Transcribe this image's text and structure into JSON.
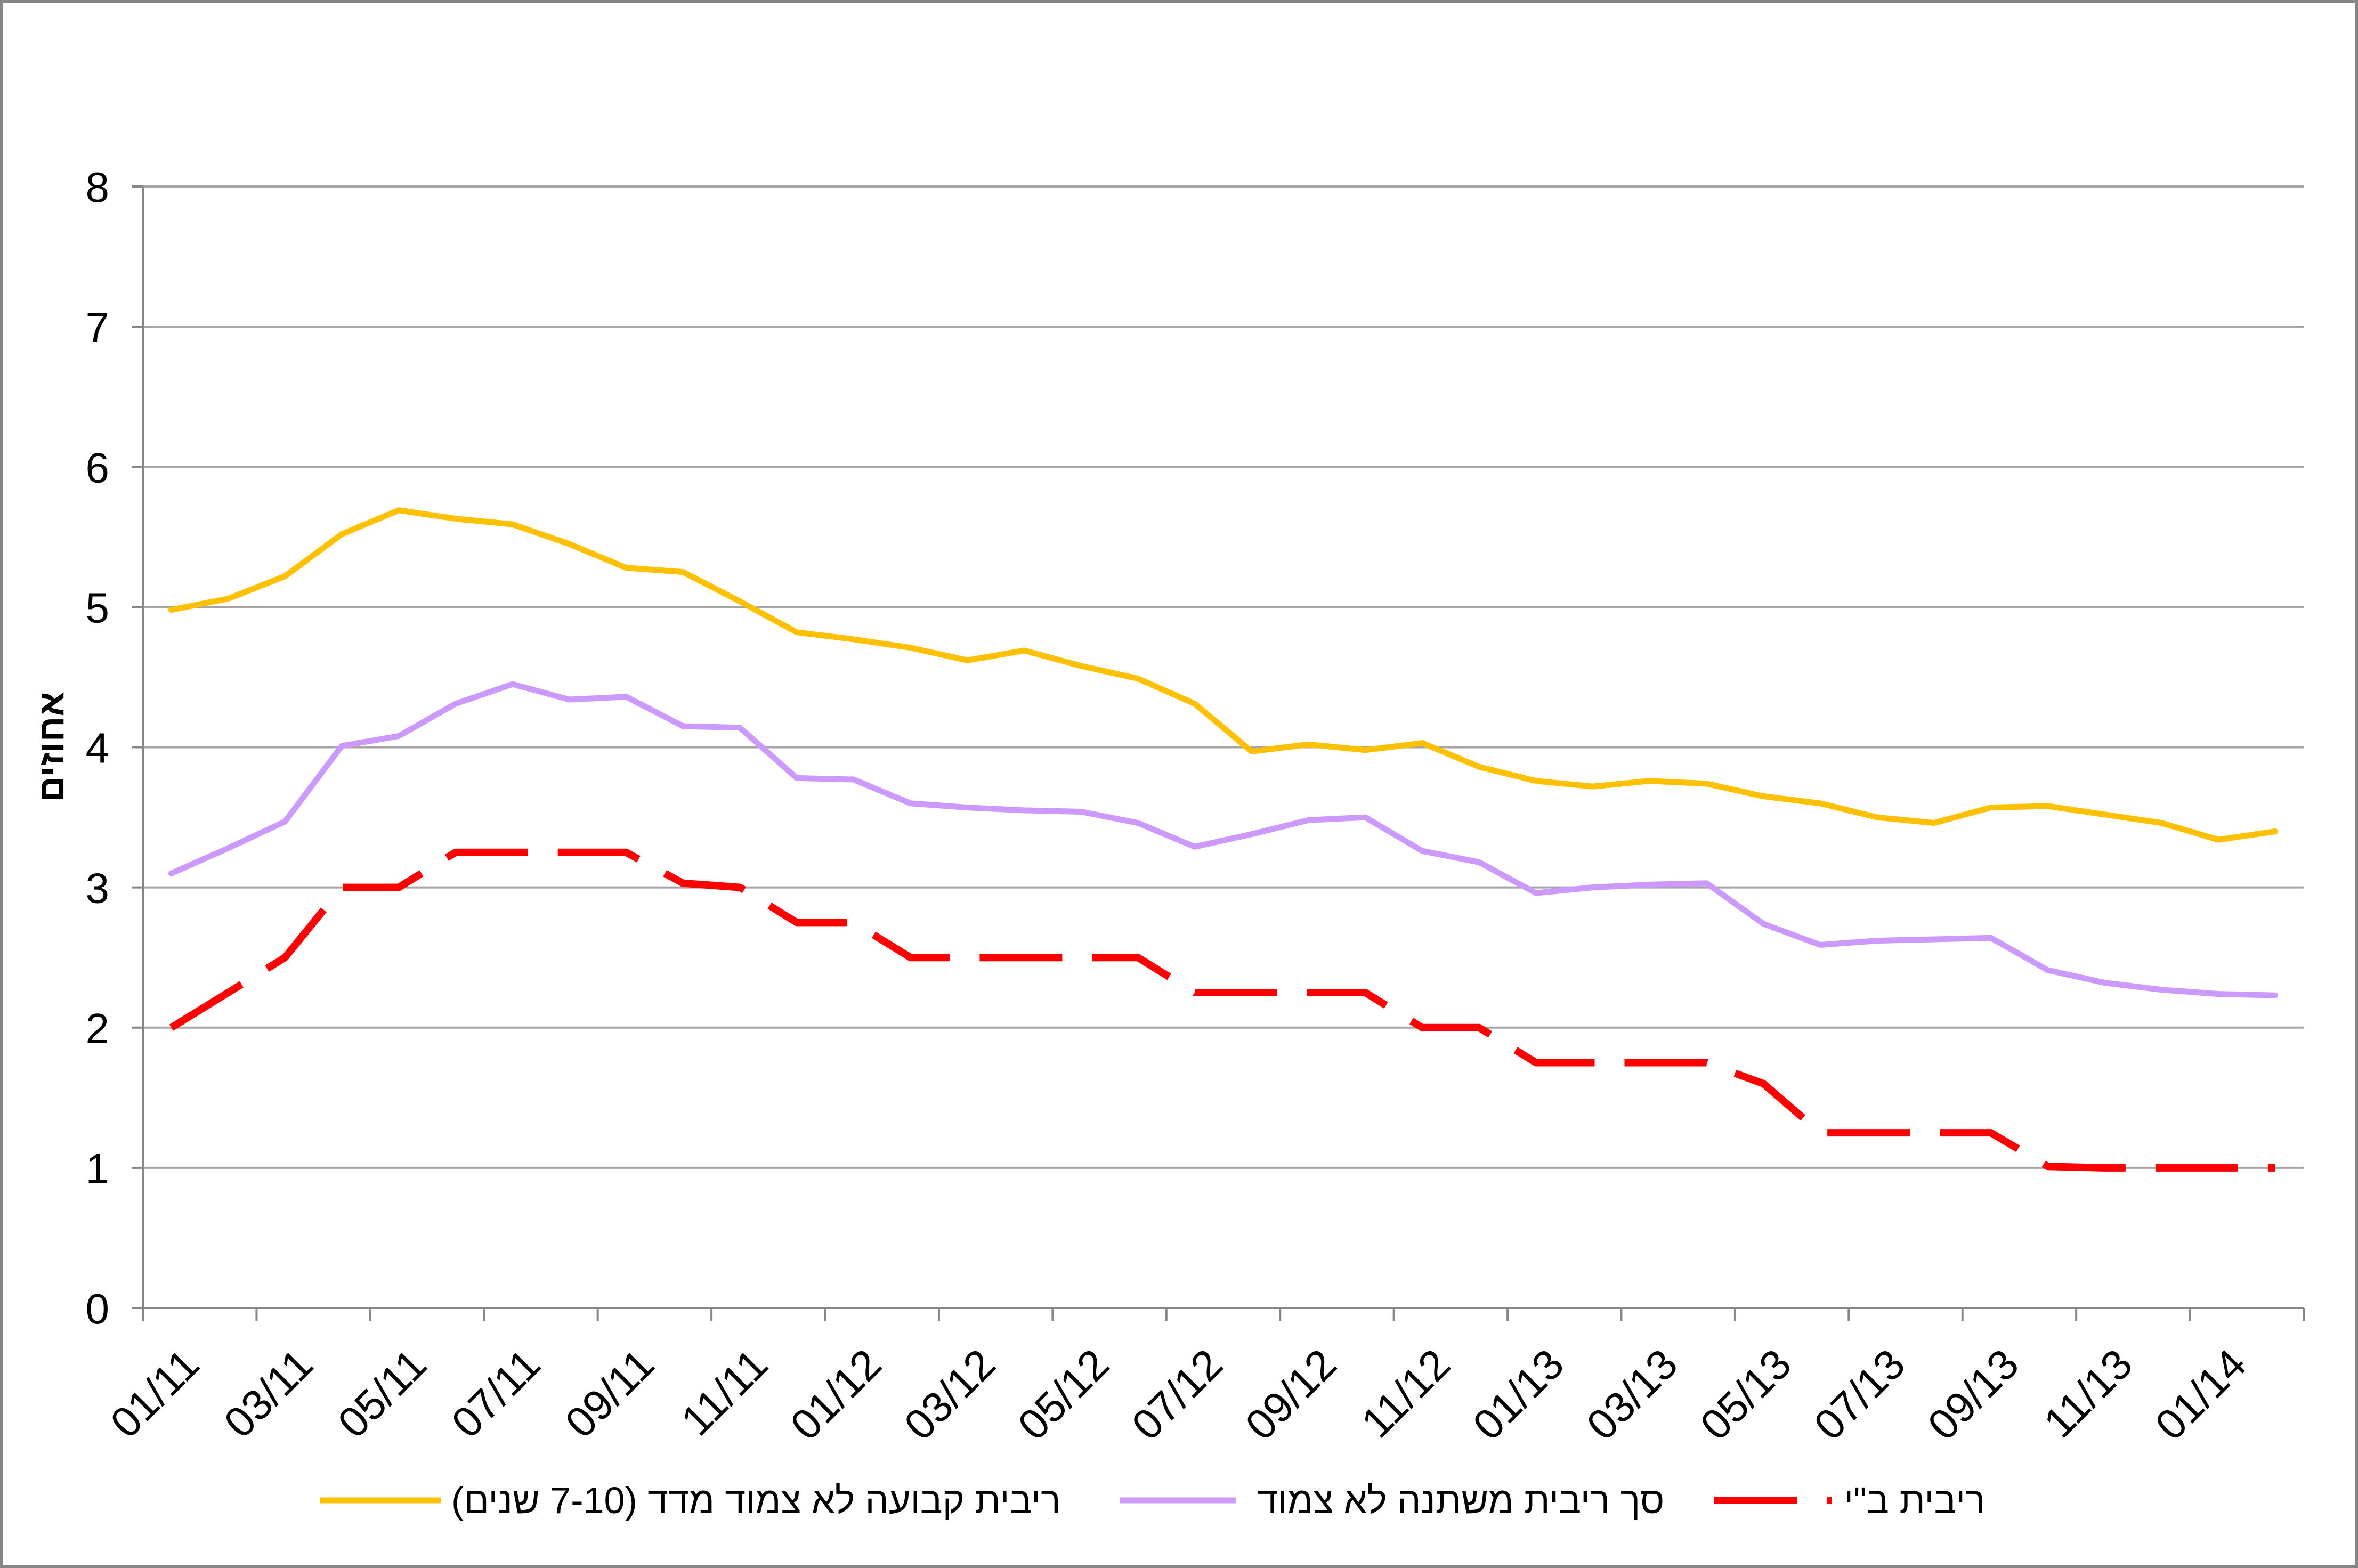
{
  "chart_data": {
    "type": "line",
    "xlabel": "",
    "ylabel": "אחוזים",
    "ylim": [
      0,
      8
    ],
    "y_ticks": [
      0,
      1,
      2,
      3,
      4,
      5,
      6,
      7,
      8
    ],
    "grid": {
      "horizontal": true,
      "vertical": false
    },
    "legend": "bottom",
    "x": [
      "01/11",
      "02/11",
      "03/11",
      "04/11",
      "05/11",
      "06/11",
      "07/11",
      "08/11",
      "09/11",
      "10/11",
      "11/11",
      "12/11",
      "01/12",
      "02/12",
      "03/12",
      "04/12",
      "05/12",
      "06/12",
      "07/12",
      "08/12",
      "09/12",
      "10/12",
      "11/12",
      "12/12",
      "01/13",
      "02/13",
      "03/13",
      "04/13",
      "05/13",
      "06/13",
      "07/13",
      "08/13",
      "09/13",
      "10/13",
      "11/13",
      "12/13",
      "01/14",
      "02/14"
    ],
    "tick_labels": [
      "01/11",
      "03/11",
      "05/11",
      "07/11",
      "09/11",
      "11/11",
      "01/12",
      "03/12",
      "05/12",
      "07/12",
      "09/12",
      "11/12",
      "01/13",
      "03/13",
      "05/13",
      "07/13",
      "09/13",
      "11/13",
      "01/14"
    ],
    "series": [
      {
        "name": "ריבית קבועה לא צמוד מדד (7-10 שנים)",
        "color": "#FFC000",
        "line_style": "solid",
        "values": [
          4.98,
          5.06,
          5.22,
          5.52,
          5.69,
          5.63,
          5.59,
          5.45,
          5.28,
          5.25,
          5.04,
          4.82,
          4.77,
          4.71,
          4.62,
          4.69,
          4.58,
          4.49,
          4.31,
          3.97,
          4.02,
          3.98,
          4.03,
          3.86,
          3.76,
          3.72,
          3.76,
          3.74,
          3.65,
          3.6,
          3.5,
          3.46,
          3.57,
          3.58,
          3.52,
          3.46,
          3.34,
          3.4
        ]
      },
      {
        "name": "סך ריבית משתנה לא צמוד",
        "color": "#CC99FF",
        "line_style": "solid",
        "values": [
          3.1,
          3.28,
          3.47,
          4.01,
          4.08,
          4.31,
          4.45,
          4.34,
          4.36,
          4.15,
          4.14,
          3.78,
          3.77,
          3.6,
          3.57,
          3.55,
          3.54,
          3.46,
          3.29,
          3.38,
          3.48,
          3.5,
          3.26,
          3.18,
          2.96,
          3.0,
          3.02,
          3.03,
          2.74,
          2.59,
          2.62,
          2.63,
          2.64,
          2.41,
          2.32,
          2.27,
          2.24,
          2.23
        ]
      },
      {
        "name": "ריבית ב\"י",
        "color": "#FF0000",
        "line_style": "dashed",
        "values": [
          2.0,
          2.25,
          2.5,
          3.0,
          3.0,
          3.25,
          3.25,
          3.25,
          3.25,
          3.03,
          3.0,
          2.75,
          2.75,
          2.5,
          2.5,
          2.5,
          2.5,
          2.5,
          2.25,
          2.25,
          2.25,
          2.25,
          2.0,
          2.0,
          1.75,
          1.75,
          1.75,
          1.75,
          1.6,
          1.25,
          1.25,
          1.25,
          1.25,
          1.01,
          1.0,
          1.0,
          1.0,
          1.0
        ]
      }
    ]
  }
}
